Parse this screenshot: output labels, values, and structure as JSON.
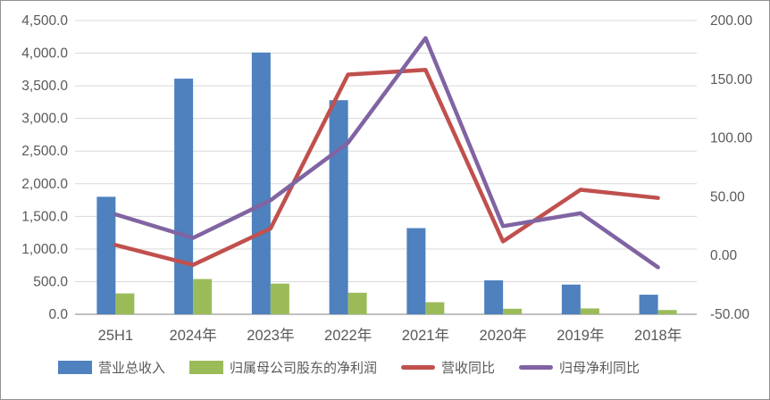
{
  "window": {
    "background": "#ffffff",
    "border_color": "#919191"
  },
  "styles": {
    "grid_color": "#d9d9d9",
    "axis_line_color": "#c0c0c0",
    "tick_text_color": "#595959",
    "bar_color_revenue": "#4E81BD",
    "bar_color_profit": "#9BBB59",
    "line_color_revenue_yoy": "#C0504D",
    "line_color_profit_yoy": "#8064A2"
  },
  "chart_data": {
    "type": "bar",
    "subtype": "combo-bar-line-dual-axis",
    "title": "",
    "xlabel": "",
    "ylabel": "",
    "grid": true,
    "legend_position": "bottom",
    "categories": [
      "25H1",
      "2024年",
      "2023年",
      "2022年",
      "2021年",
      "2020年",
      "2019年",
      "2018年"
    ],
    "series": [
      {
        "key": "total-revenue",
        "name": "营业总收入",
        "kind": "bar",
        "axis": "left",
        "color": "#4E81BD",
        "values": [
          1800,
          3610,
          4010,
          3280,
          1320,
          520,
          455,
          300
        ]
      },
      {
        "key": "net-profit",
        "name": "归属母公司股东的净利润",
        "kind": "bar",
        "axis": "left",
        "color": "#9BBB59",
        "values": [
          320,
          540,
          470,
          330,
          185,
          85,
          90,
          65
        ]
      },
      {
        "key": "revenue-yoy",
        "name": "营收同比",
        "kind": "line",
        "axis": "right",
        "color": "#C0504D",
        "values": [
          9,
          -8,
          23,
          154,
          158,
          12,
          56,
          49
        ]
      },
      {
        "key": "net-profit-yoy",
        "name": "归母净利同比",
        "kind": "line",
        "axis": "right",
        "color": "#8064A2",
        "values": [
          35,
          15,
          47,
          96,
          185,
          25,
          36,
          -10
        ]
      }
    ],
    "left_axis": {
      "min": 0,
      "max": 4500,
      "step": 500,
      "ticks": [
        {
          "value": 4500,
          "label": "4,500.0"
        },
        {
          "value": 4000,
          "label": "4,000.0"
        },
        {
          "value": 3500,
          "label": "3,500.0"
        },
        {
          "value": 3000,
          "label": "3,000.0"
        },
        {
          "value": 2500,
          "label": "2,500.0"
        },
        {
          "value": 2000,
          "label": "2,000.0"
        },
        {
          "value": 1500,
          "label": "1,500.0"
        },
        {
          "value": 1000,
          "label": "1,000.0"
        },
        {
          "value": 500,
          "label": "500.0"
        },
        {
          "value": 0,
          "label": "0.0"
        }
      ]
    },
    "right_axis": {
      "min": -50,
      "max": 200,
      "step": 50,
      "ticks": [
        {
          "value": 200,
          "label": "200.00"
        },
        {
          "value": 150,
          "label": "150.00"
        },
        {
          "value": 100,
          "label": "100.00"
        },
        {
          "value": 50,
          "label": "50.00"
        },
        {
          "value": 0,
          "label": "0.00"
        },
        {
          "value": -50,
          "label": "-50.00"
        }
      ]
    }
  }
}
